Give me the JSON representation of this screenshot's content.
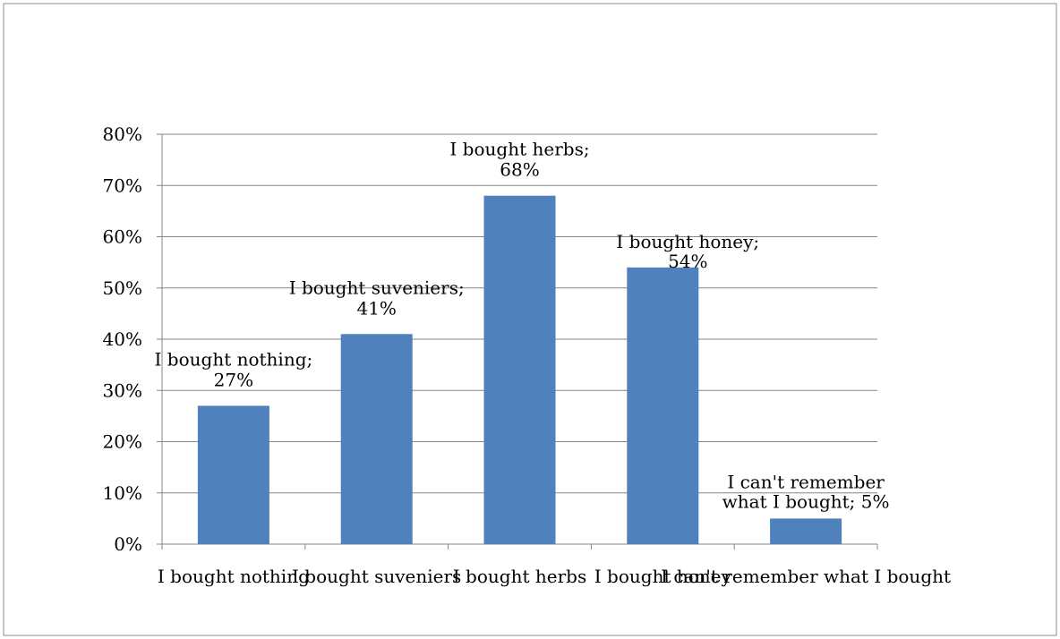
{
  "chart_data": {
    "type": "bar",
    "categories": [
      "I bought nothing",
      "I bought suveniers",
      "I bought herbs",
      "I bought honey",
      "I can't remember what I bought"
    ],
    "values": [
      27,
      41,
      68,
      54,
      5
    ],
    "value_unit": "%",
    "data_labels": [
      [
        "I bought nothing;",
        "27%"
      ],
      [
        "I bought suveniers;",
        "41%"
      ],
      [
        "I bought herbs;",
        "68%"
      ],
      [
        "I bought honey;",
        "54%"
      ],
      [
        "I can't remember",
        "what I bought; 5%"
      ]
    ],
    "title": "",
    "xlabel": "",
    "ylabel": "",
    "ylim": [
      0,
      80
    ],
    "yticks": [
      "0%",
      "10%",
      "20%",
      "30%",
      "40%",
      "50%",
      "60%",
      "70%",
      "80%"
    ],
    "grid": true,
    "legend": "none",
    "bar_color": "#4f81bd",
    "gridline_color": "#868686",
    "frame_color": "#8c8c8c"
  }
}
